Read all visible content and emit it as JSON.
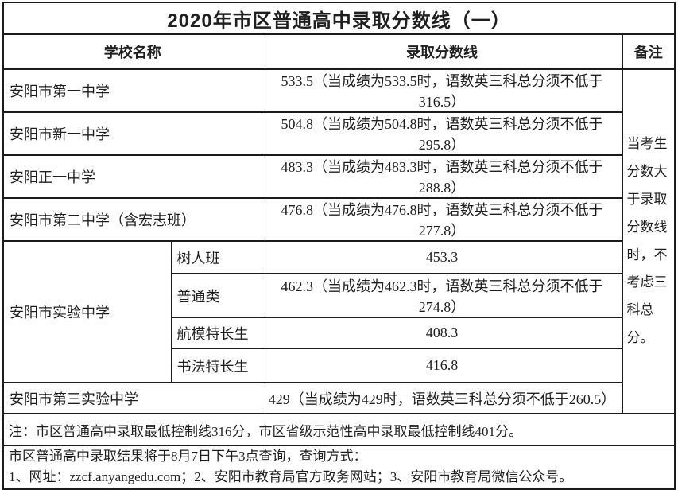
{
  "title": "2020年市区普通高中录取分数线（一）",
  "header": {
    "school": "学校名称",
    "score_line": "录取分数线",
    "remark": "备注"
  },
  "rows": [
    {
      "school": "安阳市第一中学",
      "score": "533.5（当成绩为533.5时，语数英三科总分须不低于316.5）"
    },
    {
      "school": "安阳市新一中学",
      "score": "504.8（当成绩为504.8时，语数英三科总分须不低于295.8）"
    },
    {
      "school": "安阳正一中学",
      "score": "483.3（当成绩为483.3时，语数英三科总分须不低于288.8）"
    },
    {
      "school": "安阳市第二中学（含宏志班）",
      "score": "476.8（当成绩为476.8时，语数英三科总分须不低于277.8）"
    }
  ],
  "experimental": {
    "school": "安阳市实验中学",
    "subrows": [
      {
        "category": "树人班",
        "score": "453.3"
      },
      {
        "category": "普通类",
        "score": "462.3（当成绩为462.3时，语数英三科总分须不低于274.8）"
      },
      {
        "category": "航模特长生",
        "score": "408.3"
      },
      {
        "category": "书法特长生",
        "score": "416.8"
      }
    ]
  },
  "last_row": {
    "school": "安阳市第三实验中学",
    "score": "429（当成绩为429时，语数英三科总分须不低于260.5）"
  },
  "remark_text": "当考生分数大于录取分数线时，不考虑三科总分。",
  "note": "注：市区普通高中录取最低控制线316分，市区省级示范性高中录取最低控制线401分。",
  "footer": {
    "line1": "市区普通高中录取结果将于8月7日下午3点查询，查询方式：",
    "line2": "1、网址：zzcf.anyangedu.com；2、安阳市教育局官方政务网站；3、安阳市教育局微信公众号。"
  },
  "colors": {
    "border": "#1c1c1c",
    "text": "#1f1f1f",
    "background": "#ffffff"
  }
}
